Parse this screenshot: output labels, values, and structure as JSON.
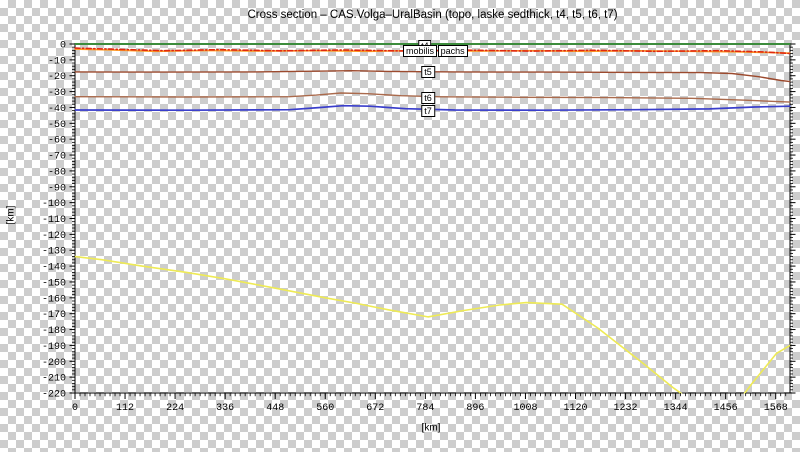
{
  "title": "Cross section – CAS.Volga–UralBasin (topo, laske sedthick, t4, t5, t6, t7)",
  "axes": {
    "x": {
      "label": "[km]",
      "min": 0,
      "max": 1600,
      "tick_values": [
        0,
        112,
        224,
        336,
        448,
        560,
        672,
        784,
        896,
        1008,
        1120,
        1232,
        1344,
        1456,
        1568
      ],
      "tick_labels": [
        "0",
        "112",
        "224",
        "336",
        "448",
        "560",
        "672",
        "784",
        "896",
        "1008",
        "1120",
        "1232",
        "1344",
        "1456",
        "1568"
      ],
      "minor_step": 11.2
    },
    "y": {
      "label": "[km]",
      "min": -220,
      "max": 0,
      "tick_values": [
        0,
        -10,
        -20,
        -30,
        -40,
        -50,
        -60,
        -70,
        -80,
        -90,
        -100,
        -110,
        -120,
        -130,
        -140,
        -150,
        -160,
        -170,
        -180,
        -190,
        -200,
        -210,
        -220
      ],
      "tick_labels": [
        "0",
        "-10",
        "-20",
        "-30",
        "-40",
        "-50",
        "-60",
        "-70",
        "-80",
        "-90",
        "-100",
        "-110",
        "-120",
        "-130",
        "-140",
        "-150",
        "-160",
        "-170",
        "-180",
        "-190",
        "-200",
        "-210",
        "-220"
      ],
      "minor_step": 2
    }
  },
  "line_labels": [
    {
      "text": "t4",
      "km": 783,
      "depth": -1.5
    },
    {
      "text": "mobilis",
      "km": 772,
      "depth": -4.2
    },
    {
      "text": "pachs",
      "km": 845,
      "depth": -4.2
    },
    {
      "text": "t5",
      "km": 790,
      "depth": -17.8
    },
    {
      "text": "t6",
      "km": 790,
      "depth": -34.2
    },
    {
      "text": "t7",
      "km": 790,
      "depth": -42.4
    }
  ],
  "chart_data": {
    "type": "line",
    "title": "Cross section – CAS.Volga–UralBasin (topo, laske sedthick, t4, t5, t6, t7)",
    "xlabel": "[km]",
    "ylabel": "[km]",
    "xlim": [
      0,
      1600
    ],
    "ylim": [
      -220,
      0
    ],
    "grid": false,
    "legend_position": "none",
    "background": "transparent-checkerboard",
    "checker_color": "#cdcdcd",
    "series": [
      {
        "name": "topo-green",
        "color": "#3c8c3c",
        "width": 2,
        "dash": "",
        "points": [
          [
            0,
            0
          ],
          [
            1600,
            0
          ]
        ]
      },
      {
        "name": "laske-sedthick-orange",
        "color": "#ff9d26",
        "width": 1.6,
        "dash": "",
        "points": [
          [
            0,
            -3.2
          ],
          [
            80,
            -3.8
          ],
          [
            180,
            -4.6
          ],
          [
            300,
            -4.1
          ],
          [
            420,
            -4.5
          ],
          [
            540,
            -4.2
          ],
          [
            660,
            -4.6
          ],
          [
            780,
            -4.1
          ],
          [
            900,
            -4.5
          ],
          [
            1020,
            -4.2
          ],
          [
            1140,
            -4.6
          ],
          [
            1260,
            -4.3
          ],
          [
            1380,
            -4.6
          ],
          [
            1480,
            -4.9
          ],
          [
            1560,
            -5.4
          ],
          [
            1600,
            -5.8
          ]
        ]
      },
      {
        "name": "t4-red-dashdot",
        "color": "#e02810",
        "width": 1.6,
        "dash": "5 2.5 1.2 2.5",
        "points": [
          [
            0,
            -2.6
          ],
          [
            100,
            -3.4
          ],
          [
            200,
            -4.2
          ],
          [
            320,
            -3.6
          ],
          [
            460,
            -4.3
          ],
          [
            600,
            -3.8
          ],
          [
            740,
            -4.4
          ],
          [
            880,
            -3.9
          ],
          [
            1020,
            -4.5
          ],
          [
            1160,
            -4.0
          ],
          [
            1300,
            -4.6
          ],
          [
            1440,
            -4.2
          ],
          [
            1540,
            -5.0
          ],
          [
            1600,
            -6.0
          ]
        ]
      },
      {
        "name": "t5",
        "color": "#9c4a2e",
        "width": 1.4,
        "dash": "",
        "points": [
          [
            0,
            -17.6
          ],
          [
            200,
            -17.7
          ],
          [
            400,
            -17.6
          ],
          [
            560,
            -17.1
          ],
          [
            620,
            -16.8
          ],
          [
            700,
            -17.3
          ],
          [
            850,
            -17.6
          ],
          [
            1050,
            -17.7
          ],
          [
            1250,
            -17.9
          ],
          [
            1400,
            -18.0
          ],
          [
            1470,
            -18.6
          ],
          [
            1530,
            -20.6
          ],
          [
            1580,
            -23.0
          ],
          [
            1600,
            -23.7
          ]
        ]
      },
      {
        "name": "t6",
        "color": "#aa6a4c",
        "width": 1.4,
        "dash": "",
        "points": [
          [
            0,
            -33.2
          ],
          [
            250,
            -33.4
          ],
          [
            480,
            -33.2
          ],
          [
            540,
            -32.2
          ],
          [
            595,
            -30.9
          ],
          [
            655,
            -31.3
          ],
          [
            730,
            -32.6
          ],
          [
            820,
            -33.3
          ],
          [
            1000,
            -33.6
          ],
          [
            1200,
            -33.8
          ],
          [
            1380,
            -34.2
          ],
          [
            1500,
            -35.4
          ],
          [
            1600,
            -36.6
          ]
        ]
      },
      {
        "name": "t7",
        "color": "#3a3ecb",
        "width": 1.7,
        "dash": "",
        "points": [
          [
            0,
            -41.6
          ],
          [
            250,
            -41.7
          ],
          [
            480,
            -41.4
          ],
          [
            545,
            -40.1
          ],
          [
            600,
            -38.9
          ],
          [
            660,
            -39.2
          ],
          [
            740,
            -40.8
          ],
          [
            850,
            -41.6
          ],
          [
            1050,
            -41.7
          ],
          [
            1250,
            -41.4
          ],
          [
            1420,
            -40.9
          ],
          [
            1520,
            -39.7
          ],
          [
            1600,
            -39.2
          ]
        ]
      },
      {
        "name": "deep-interface-yellow",
        "color": "#eeea55",
        "width": 1.6,
        "dash": "",
        "points": [
          [
            0,
            -134
          ],
          [
            60,
            -136
          ],
          [
            150,
            -140
          ],
          [
            250,
            -144
          ],
          [
            336,
            -148
          ],
          [
            450,
            -154
          ],
          [
            560,
            -160
          ],
          [
            630,
            -163.5
          ],
          [
            700,
            -167.5
          ],
          [
            790,
            -172
          ],
          [
            870,
            -168
          ],
          [
            950,
            -164.5
          ],
          [
            1010,
            -163
          ],
          [
            1090,
            -164
          ],
          [
            1170,
            -179
          ],
          [
            1270,
            -201
          ],
          [
            1340,
            -217
          ],
          [
            1390,
            -227
          ],
          [
            1440,
            -231
          ],
          [
            1480,
            -227
          ],
          [
            1515,
            -214
          ],
          [
            1570,
            -195
          ],
          [
            1600,
            -190
          ]
        ]
      }
    ]
  }
}
